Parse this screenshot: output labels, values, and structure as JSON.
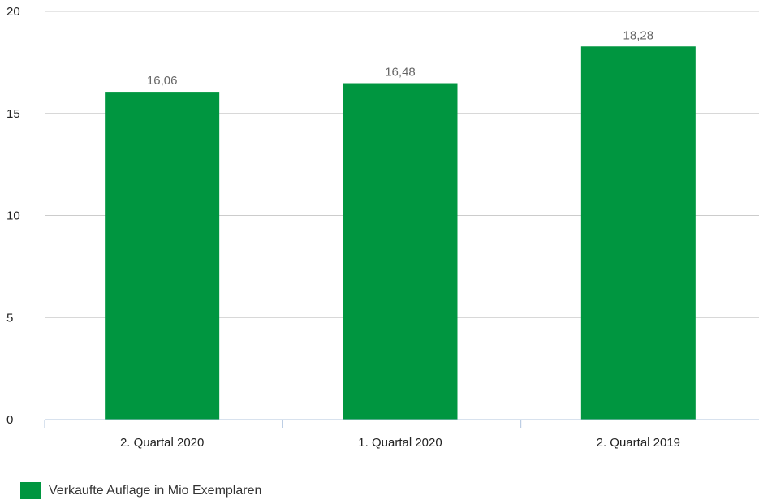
{
  "chart_data": {
    "type": "bar",
    "categories": [
      "2. Quartal 2020",
      "1. Quartal 2020",
      "2. Quartal 2019"
    ],
    "series": [
      {
        "name": "Verkaufte Auflage in Mio Exemplaren",
        "values": [
          16.06,
          16.48,
          18.28
        ],
        "labels": [
          "16,06",
          "16,48",
          "18,28"
        ],
        "color": "#009640"
      }
    ],
    "ylim": [
      0,
      20
    ],
    "yticks": [
      0,
      5,
      10,
      15,
      20
    ],
    "grid": true,
    "legend_position": "bottom-left"
  },
  "colors": {
    "bar": "#009640",
    "grid": "#cccccc",
    "axis": "#b0c4de"
  }
}
